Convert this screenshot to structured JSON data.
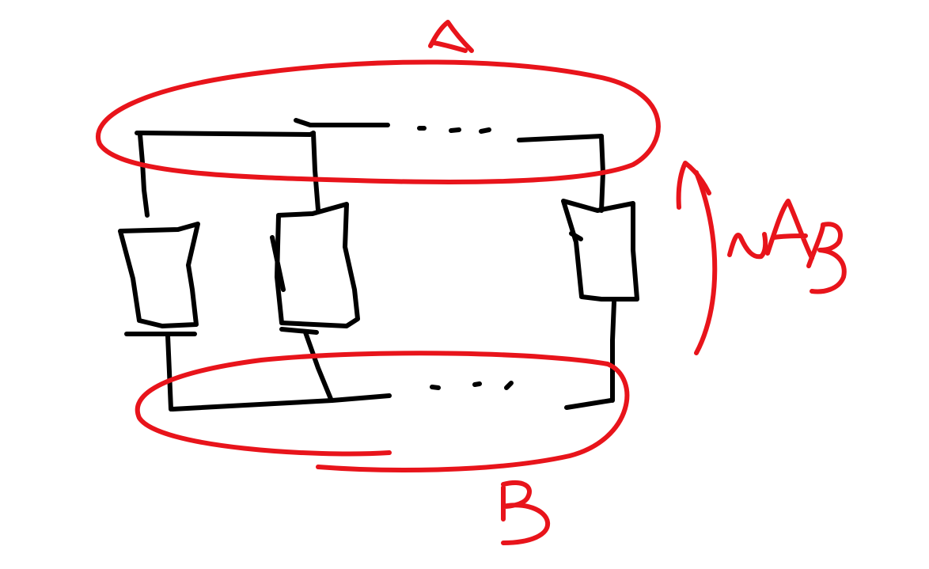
{
  "colors": {
    "background": "#ffffff",
    "circuit_ink": "#000000",
    "annotation_ink": "#e8141b"
  },
  "labels": {
    "node_a": "A",
    "node_b": "B",
    "voltage": "UAB"
  },
  "icons": {
    "resistor": "resistor-icon",
    "ellipsis": "ellipsis-icon",
    "voltage_arrow": "curved-arrow-icon"
  }
}
